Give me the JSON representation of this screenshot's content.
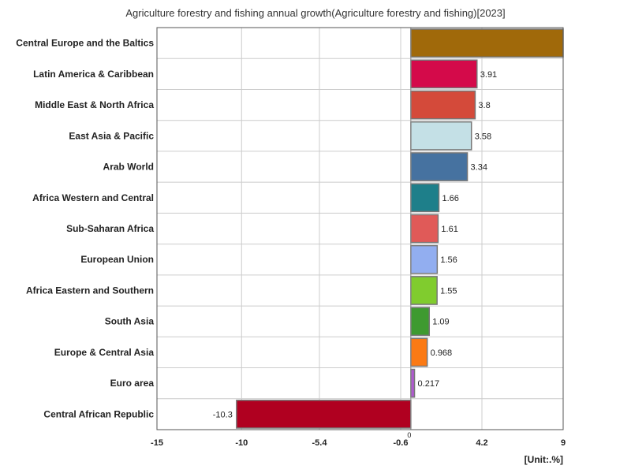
{
  "chart_data": {
    "type": "bar",
    "orientation": "horizontal",
    "title": "Agriculture forestry and fishing annual growth(Agriculture forestry and fishing)[2023]",
    "unit_label": "[Unit:.%]",
    "categories": [
      "Central Europe and the Baltics",
      "Latin America & Caribbean",
      "Middle East & North Africa",
      "East Asia & Pacific",
      "Arab World",
      "Africa Western and Central",
      "Sub-Saharan Africa",
      "European Union",
      "Africa Eastern and Southern",
      "South Asia",
      "Europe & Central Asia",
      "Euro area",
      "Central African Republic"
    ],
    "values": [
      9.0,
      3.91,
      3.8,
      3.58,
      3.34,
      1.66,
      1.61,
      1.56,
      1.55,
      1.09,
      0.968,
      0.217,
      -10.3
    ],
    "value_labels": [
      "",
      "3.91",
      "3.8",
      "3.58",
      "3.34",
      "1.66",
      "1.61",
      "1.56",
      "1.55",
      "1.09",
      "0.968",
      "0.217",
      "-10.3"
    ],
    "colors": [
      "#a0690a",
      "#d40a4a",
      "#d44a3a",
      "#c4e0e6",
      "#4672a0",
      "#1e7f8a",
      "#e05a58",
      "#92aef0",
      "#80cc2e",
      "#3e9a30",
      "#fb7a14",
      "#b05ad0",
      "#b00020"
    ],
    "xlim": [
      -15,
      9
    ],
    "ticks": [
      -15,
      -10,
      -5.4,
      -0.6,
      4.2,
      9
    ],
    "tick_labels": [
      "-15",
      "-10",
      "-5.4",
      "-0.6",
      "4.2",
      "9"
    ],
    "zero_label": "0",
    "grid": true
  }
}
